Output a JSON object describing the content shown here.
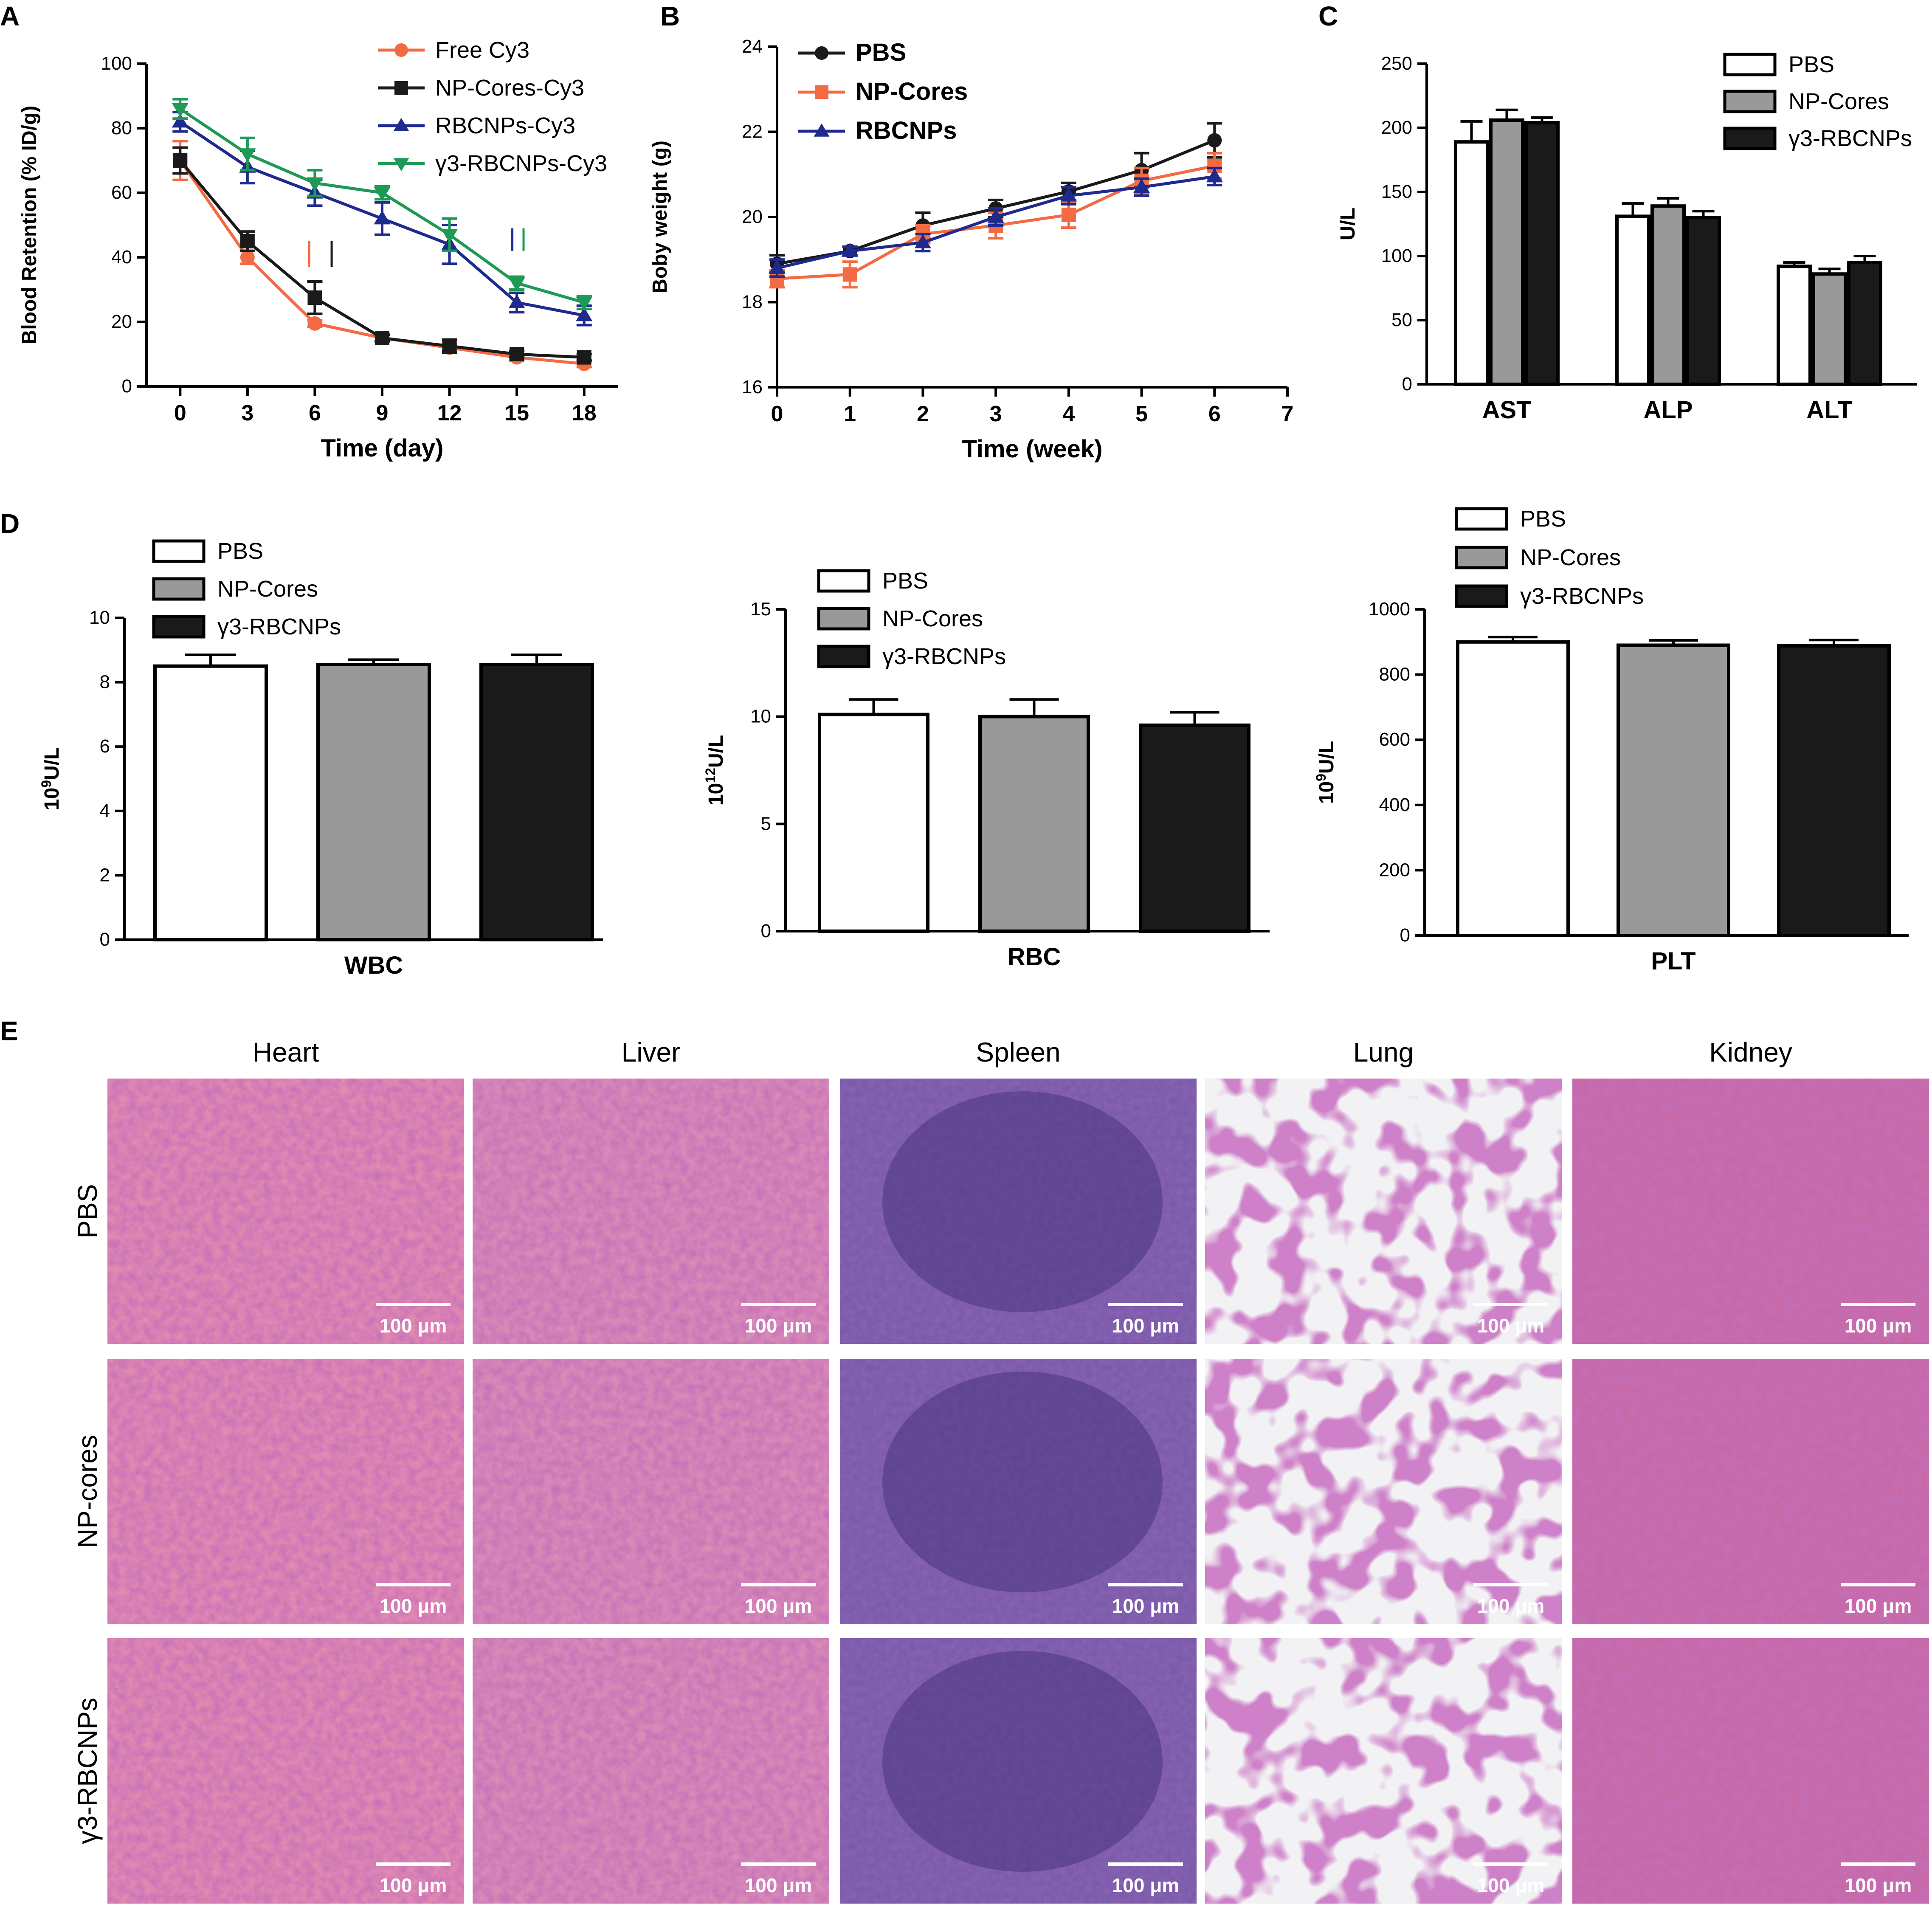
{
  "panel_letters": [
    "A",
    "B",
    "C",
    "D",
    "E"
  ],
  "chart_data": [
    {
      "id": "A",
      "type": "line",
      "xlabel": "Time (day)",
      "ylabel": "Blood Retention (% ID/g)",
      "xlim": [
        -1.5,
        19.5
      ],
      "ylim": [
        0,
        100
      ],
      "xticks": [
        "0",
        "3",
        "6",
        "9",
        "12",
        "15",
        "18"
      ],
      "yticks": [
        "0",
        "20",
        "40",
        "60",
        "80",
        "100"
      ],
      "x": [
        0,
        3,
        6,
        9,
        12,
        15,
        18
      ],
      "legend_position": "top-right",
      "series": [
        {
          "name": "Free Cy3",
          "color": "#f26b43",
          "marker": "circle",
          "values": [
            70,
            40,
            19.5,
            15,
            12,
            9,
            7
          ],
          "errors": [
            6,
            2,
            1,
            1,
            1,
            1,
            1
          ]
        },
        {
          "name": "NP-Cores-Cy3",
          "color": "#1a1a1a",
          "marker": "square",
          "values": [
            70,
            45,
            27.5,
            15,
            12.5,
            10,
            9
          ],
          "errors": [
            4,
            3,
            5,
            1,
            2,
            1,
            1
          ]
        },
        {
          "name": "RBCNPs-Cy3",
          "color": "#1f2a8f",
          "marker": "triangle-up",
          "values": [
            82,
            68,
            60,
            52,
            44,
            26,
            22
          ],
          "errors": [
            3,
            5,
            4,
            5,
            6,
            3,
            3
          ]
        },
        {
          "name": "γ3-RBCNPs-Cy3",
          "color": "#1e9a56",
          "marker": "triangle-down",
          "values": [
            86,
            72,
            63,
            60,
            47,
            32,
            26
          ],
          "errors": [
            3,
            5,
            4,
            2,
            5,
            2,
            2
          ]
        }
      ],
      "annotations": [
        {
          "x": 5.75,
          "y0": 37,
          "y1": 45,
          "color": "#f26b43"
        },
        {
          "x": 6.75,
          "y0": 37,
          "y1": 45,
          "color": "#1a1a1a"
        },
        {
          "x": 14.8,
          "y0": 42,
          "y1": 49,
          "color": "#1f2a8f"
        },
        {
          "x": 15.3,
          "y0": 42,
          "y1": 49,
          "color": "#1e9a56"
        }
      ]
    },
    {
      "id": "B",
      "type": "line",
      "xlabel": "Time (week)",
      "ylabel": "Boby weight (g)",
      "xlim": [
        0,
        7
      ],
      "ylim": [
        16,
        24
      ],
      "xticks": [
        "0",
        "1",
        "2",
        "3",
        "4",
        "5",
        "6",
        "7"
      ],
      "yticks": [
        "16",
        "18",
        "20",
        "22",
        "24"
      ],
      "x": [
        0,
        1,
        2,
        3,
        4,
        5,
        6
      ],
      "legend_position": "top-left",
      "series": [
        {
          "name": "PBS",
          "color": "#1a1a1a",
          "marker": "circle",
          "values": [
            18.9,
            19.2,
            19.8,
            20.2,
            20.6,
            21.1,
            21.8
          ],
          "errors": [
            0.2,
            0.1,
            0.3,
            0.2,
            0.2,
            0.4,
            0.4
          ]
        },
        {
          "name": "NP-Cores",
          "color": "#f26b43",
          "marker": "square",
          "values": [
            18.55,
            18.65,
            19.6,
            19.8,
            20.05,
            20.85,
            21.2
          ],
          "errors": [
            0.2,
            0.3,
            0.2,
            0.3,
            0.3,
            0.3,
            0.3
          ]
        },
        {
          "name": "RBCNPs",
          "color": "#1f2a8f",
          "marker": "triangle-up",
          "values": [
            18.8,
            19.2,
            19.4,
            20.0,
            20.5,
            20.7,
            20.95
          ],
          "errors": [
            0.2,
            0.1,
            0.2,
            0.2,
            0.2,
            0.2,
            0.2
          ]
        }
      ]
    },
    {
      "id": "C",
      "type": "bar",
      "ylabel": "U/L",
      "ylim": [
        0,
        250
      ],
      "yticks": [
        "0",
        "50",
        "100",
        "150",
        "200",
        "250"
      ],
      "categories": [
        "AST",
        "ALP",
        "ALT"
      ],
      "legend_position": "top-right",
      "series": [
        {
          "name": "PBS",
          "color": "#ffffff",
          "values": [
            189,
            131,
            92
          ],
          "errors": [
            16,
            10,
            3
          ]
        },
        {
          "name": "NP-Cores",
          "color": "#999999",
          "values": [
            206,
            139,
            86
          ],
          "errors": [
            8,
            6,
            4
          ]
        },
        {
          "name": "γ3-RBCNPs",
          "color": "#1a1a1a",
          "values": [
            204,
            130,
            95
          ],
          "errors": [
            4,
            5,
            5
          ]
        }
      ]
    },
    {
      "id": "D-WBC",
      "type": "bar",
      "ylabel": "10^9U/L",
      "ylim": [
        0,
        10
      ],
      "yticks": [
        "0",
        "2",
        "4",
        "6",
        "8",
        "10"
      ],
      "categories": [
        "WBC"
      ],
      "legend_position": "top-left",
      "series": [
        {
          "name": "PBS",
          "color": "#ffffff",
          "values": [
            8.5
          ],
          "errors": [
            0.35
          ]
        },
        {
          "name": "NP-Cores",
          "color": "#999999",
          "values": [
            8.55
          ],
          "errors": [
            0.15
          ]
        },
        {
          "name": "γ3-RBCNPs",
          "color": "#1a1a1a",
          "values": [
            8.55
          ],
          "errors": [
            0.3
          ]
        }
      ]
    },
    {
      "id": "D-RBC",
      "type": "bar",
      "ylabel": "10^12U/L",
      "ylim": [
        0,
        15
      ],
      "yticks": [
        "0",
        "5",
        "10",
        "15"
      ],
      "categories": [
        "RBC"
      ],
      "legend_position": "top-left",
      "series": [
        {
          "name": "PBS",
          "color": "#ffffff",
          "values": [
            10.1
          ],
          "errors": [
            0.7
          ]
        },
        {
          "name": "NP-Cores",
          "color": "#999999",
          "values": [
            10.0
          ],
          "errors": [
            0.8
          ]
        },
        {
          "name": "γ3-RBCNPs",
          "color": "#1a1a1a",
          "values": [
            9.6
          ],
          "errors": [
            0.6
          ]
        }
      ]
    },
    {
      "id": "D-PLT",
      "type": "bar",
      "ylabel": "10^9U/L",
      "ylim": [
        0,
        1000
      ],
      "yticks": [
        "0",
        "200",
        "400",
        "600",
        "800",
        "1000"
      ],
      "categories": [
        "PLT"
      ],
      "legend_position": "top-left",
      "series": [
        {
          "name": "PBS",
          "color": "#ffffff",
          "values": [
            900
          ],
          "errors": [
            15
          ]
        },
        {
          "name": "NP-Cores",
          "color": "#999999",
          "values": [
            890
          ],
          "errors": [
            15
          ]
        },
        {
          "name": "γ3-RBCNPs",
          "color": "#1a1a1a",
          "values": [
            888
          ],
          "errors": [
            18
          ]
        }
      ]
    }
  ],
  "histology": {
    "columns": [
      "Heart",
      "Liver",
      "Spleen",
      "Lung",
      "Kidney"
    ],
    "rows": [
      "PBS",
      "NP-cores",
      "γ3-RBCNPs"
    ],
    "scale_label": "100 μm"
  }
}
